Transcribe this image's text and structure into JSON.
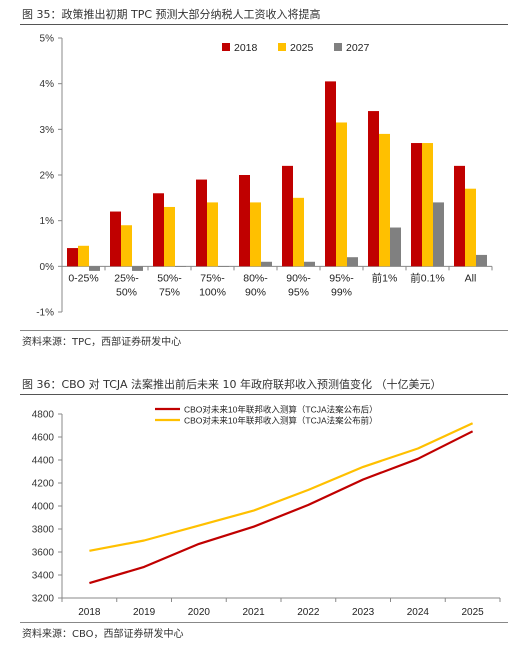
{
  "figure1": {
    "title": "图 35：政策推出初期 TPC 预测大部分纳税人工资收入将提高",
    "source": "资料来源：TPC，西部证券研发中心"
  },
  "figure2": {
    "title": "图 36：CBO 对 TCJA 法案推出前后未来 10 年政府联邦收入预测值变化 （十亿美元）",
    "source": "资料来源：CBO，西部证券研发中心"
  },
  "chart_data": [
    {
      "type": "bar",
      "title": "",
      "xlabel": "",
      "ylabel": "",
      "ylim": [
        -1,
        5
      ],
      "y_tick_format": "percent",
      "y_ticks": [
        -1,
        0,
        1,
        2,
        3,
        4,
        5
      ],
      "grid": false,
      "legend_position": "top-right",
      "categories": [
        "0-25%",
        "25%-\n50%",
        "50%-\n75%",
        "75%-\n100%",
        "80%-\n90%",
        "90%-\n95%",
        "95%-\n99%",
        "前1%",
        "前0.1%",
        "All"
      ],
      "series": [
        {
          "name": "2018",
          "color": "#C00000",
          "values": [
            0.4,
            1.2,
            1.6,
            1.9,
            2.0,
            2.2,
            4.05,
            3.4,
            2.7,
            2.2
          ]
        },
        {
          "name": "2025",
          "color": "#FFC000",
          "values": [
            0.45,
            0.9,
            1.3,
            1.4,
            1.4,
            1.5,
            3.15,
            2.9,
            2.7,
            1.7
          ]
        },
        {
          "name": "2027",
          "color": "#808080",
          "values": [
            -0.1,
            -0.1,
            0.0,
            0.0,
            0.1,
            0.1,
            0.2,
            0.85,
            1.4,
            0.25
          ]
        }
      ]
    },
    {
      "type": "line",
      "title": "",
      "xlabel": "",
      "ylabel": "",
      "x": [
        "2018",
        "2019",
        "2020",
        "2021",
        "2022",
        "2023",
        "2024",
        "2025"
      ],
      "ylim": [
        3200,
        4800
      ],
      "y_ticks": [
        3200,
        3400,
        3600,
        3800,
        4000,
        4200,
        4400,
        4600,
        4800
      ],
      "grid": false,
      "legend_position": "top-center",
      "series": [
        {
          "name": "CBO对未来10年联邦收入测算（TCJA法案公布后）",
          "color": "#C00000",
          "values": [
            3330,
            3470,
            3670,
            3820,
            4010,
            4230,
            4410,
            4650
          ]
        },
        {
          "name": "CBO对未来10年联邦收入测算（TCJA法案公布前）",
          "color": "#FFC000",
          "values": [
            3610,
            3700,
            3830,
            3960,
            4140,
            4340,
            4500,
            4720
          ]
        }
      ]
    }
  ]
}
